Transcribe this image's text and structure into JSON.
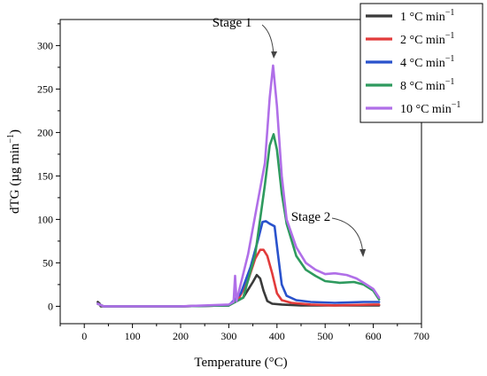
{
  "chart_data": {
    "type": "line",
    "xlabel": "Temperature (°C)",
    "ylabel": "dTG (µg min",
    "ylabel_sup": "−1",
    "ylabel_close": ")",
    "xlim": [
      -50,
      700
    ],
    "ylim": [
      -20,
      330
    ],
    "xticks": [
      0,
      100,
      200,
      300,
      400,
      500,
      600,
      700
    ],
    "yticks": [
      0,
      50,
      100,
      150,
      200,
      250,
      300
    ],
    "grid": false,
    "legend_position": "top-right",
    "annotations": [
      {
        "text": "Stage 1",
        "x": 395,
        "y": 275
      },
      {
        "text": "Stage 2",
        "x": 555,
        "y": 40
      }
    ],
    "series": [
      {
        "name": "1 °C min",
        "name_sup": "−1",
        "color": "#3a3a3a",
        "x": [
          28,
          32,
          34,
          40,
          100,
          200,
          300,
          330,
          350,
          358,
          365,
          372,
          380,
          390,
          410,
          450,
          500,
          600,
          612
        ],
        "y": [
          5,
          3,
          0,
          0,
          0,
          0,
          1,
          10,
          28,
          36,
          32,
          18,
          6,
          3,
          2,
          1,
          1,
          1,
          1
        ]
      },
      {
        "name": "2 °C min",
        "name_sup": "−1",
        "color": "#e23b3b",
        "x": [
          28,
          40,
          100,
          200,
          300,
          320,
          340,
          355,
          365,
          372,
          380,
          390,
          400,
          410,
          430,
          470,
          520,
          600,
          612
        ],
        "y": [
          3,
          0,
          0,
          0,
          1,
          8,
          30,
          55,
          65,
          65,
          58,
          38,
          15,
          7,
          4,
          2,
          1,
          2,
          2
        ]
      },
      {
        "name": "4 °C min",
        "name_sup": "−1",
        "color": "#2952cc",
        "x": [
          28,
          40,
          100,
          200,
          300,
          325,
          345,
          360,
          370,
          377,
          385,
          395,
          402,
          410,
          420,
          440,
          470,
          520,
          580,
          612
        ],
        "y": [
          3,
          0,
          0,
          0,
          1,
          15,
          45,
          75,
          97,
          98,
          95,
          92,
          60,
          25,
          12,
          7,
          5,
          4,
          5,
          5
        ]
      },
      {
        "name": "8 °C min",
        "name_sup": "−1",
        "color": "#2e9a5e",
        "x": [
          28,
          40,
          100,
          200,
          300,
          330,
          355,
          375,
          385,
          393,
          400,
          410,
          420,
          440,
          460,
          480,
          500,
          530,
          560,
          580,
          600,
          612
        ],
        "y": [
          3,
          0,
          0,
          0,
          1,
          10,
          60,
          140,
          185,
          198,
          180,
          130,
          95,
          58,
          42,
          35,
          29,
          27,
          28,
          25,
          18,
          8
        ]
      },
      {
        "name": "10 °C min",
        "name_sup": "−1",
        "color": "#b06fe8",
        "x": [
          28,
          40,
          100,
          200,
          300,
          310,
          313,
          316,
          320,
          340,
          360,
          375,
          385,
          392,
          400,
          410,
          420,
          440,
          460,
          480,
          500,
          520,
          545,
          565,
          580,
          600,
          612
        ],
        "y": [
          3,
          0,
          0,
          0,
          2,
          5,
          35,
          6,
          15,
          60,
          120,
          165,
          240,
          277,
          230,
          150,
          100,
          68,
          50,
          42,
          37,
          38,
          36,
          32,
          27,
          20,
          10
        ]
      }
    ]
  }
}
